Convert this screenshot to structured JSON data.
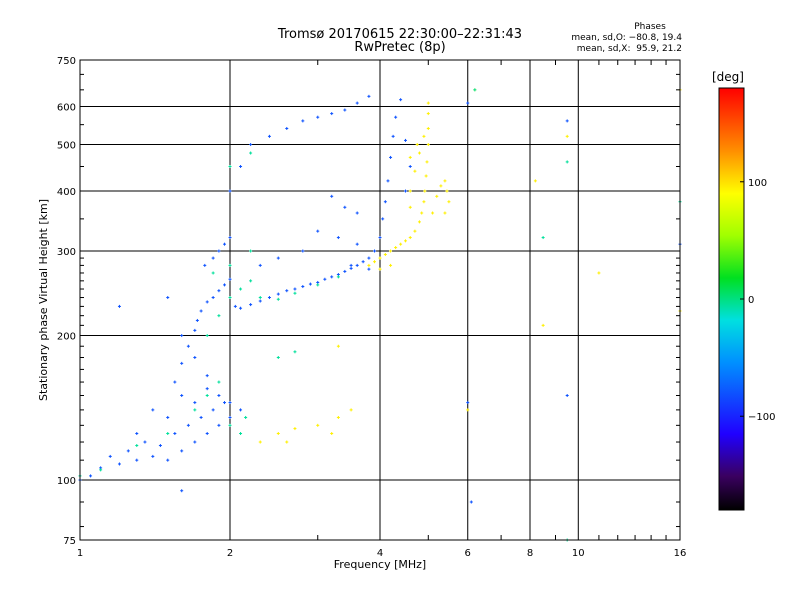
{
  "title_line1": "Tromsø 20170615 22:30:00–22:31:43",
  "title_line2": "RwPretec (8p)",
  "phase_info": {
    "title": "Phases",
    "line_o": "mean, sd,O: −80.8, 19.4",
    "line_x": "mean, sd,X:  95.9, 21.2"
  },
  "colorbar": {
    "unit": "[deg]",
    "ticks": [
      "100",
      "0",
      "−100"
    ],
    "tick_values": [
      100,
      0,
      -100
    ],
    "range": [
      -180,
      180
    ]
  },
  "chart_data": {
    "type": "scatter",
    "xlabel": "Frequency [MHz]",
    "ylabel": "Stationary phase Virtual Height [km]",
    "xscale": "log",
    "yscale": "log",
    "xlim": [
      1,
      16
    ],
    "ylim": [
      75,
      750
    ],
    "xticks": [
      1,
      2,
      4,
      6,
      8,
      10,
      16
    ],
    "xtick_labels": [
      "1",
      "2",
      "4",
      "6",
      "8",
      "10",
      "16"
    ],
    "yticks": [
      75,
      100,
      200,
      300,
      400,
      500,
      600,
      750
    ],
    "ytick_labels": [
      "75",
      "100",
      "200",
      "300",
      "400",
      "500",
      "600",
      "750"
    ],
    "grid": true,
    "series": [
      {
        "polarization": "O",
        "phase_deg": -80,
        "points": [
          [
            1.0,
            100
          ],
          [
            1.05,
            102
          ],
          [
            1.1,
            106
          ],
          [
            1.15,
            112
          ],
          [
            1.2,
            108
          ],
          [
            1.25,
            115
          ],
          [
            1.3,
            110
          ],
          [
            1.35,
            120
          ],
          [
            1.4,
            112
          ],
          [
            1.45,
            118
          ],
          [
            1.5,
            110
          ],
          [
            1.55,
            125
          ],
          [
            1.6,
            115
          ],
          [
            1.65,
            130
          ],
          [
            1.7,
            120
          ],
          [
            1.75,
            135
          ],
          [
            1.8,
            125
          ],
          [
            1.85,
            140
          ],
          [
            1.9,
            130
          ],
          [
            1.95,
            145
          ],
          [
            2.0,
            135
          ],
          [
            1.3,
            125
          ],
          [
            1.4,
            140
          ],
          [
            1.5,
            135
          ],
          [
            1.6,
            150
          ],
          [
            1.7,
            145
          ],
          [
            1.8,
            155
          ],
          [
            1.55,
            160
          ],
          [
            1.6,
            175
          ],
          [
            1.65,
            190
          ],
          [
            1.7,
            205
          ],
          [
            1.72,
            215
          ],
          [
            1.75,
            225
          ],
          [
            1.8,
            235
          ],
          [
            1.85,
            240
          ],
          [
            1.9,
            248
          ],
          [
            1.95,
            255
          ],
          [
            2.0,
            262
          ],
          [
            1.78,
            280
          ],
          [
            1.85,
            290
          ],
          [
            1.9,
            300
          ],
          [
            1.95,
            310
          ],
          [
            2.0,
            320
          ],
          [
            2.05,
            230
          ],
          [
            2.1,
            228
          ],
          [
            2.2,
            232
          ],
          [
            2.3,
            236
          ],
          [
            2.4,
            240
          ],
          [
            2.5,
            244
          ],
          [
            2.6,
            248
          ],
          [
            2.7,
            250
          ],
          [
            2.8,
            253
          ],
          [
            2.9,
            256
          ],
          [
            3.0,
            258
          ],
          [
            3.1,
            262
          ],
          [
            3.2,
            265
          ],
          [
            3.3,
            268
          ],
          [
            3.4,
            272
          ],
          [
            3.5,
            276
          ],
          [
            3.6,
            280
          ],
          [
            3.7,
            285
          ],
          [
            3.8,
            290
          ],
          [
            3.9,
            300
          ],
          [
            4.0,
            320
          ],
          [
            4.05,
            350
          ],
          [
            4.1,
            380
          ],
          [
            4.15,
            420
          ],
          [
            4.2,
            470
          ],
          [
            4.25,
            520
          ],
          [
            4.3,
            570
          ],
          [
            4.4,
            620
          ],
          [
            2.0,
            400
          ],
          [
            2.1,
            450
          ],
          [
            2.2,
            500
          ],
          [
            2.4,
            520
          ],
          [
            2.6,
            540
          ],
          [
            2.8,
            560
          ],
          [
            3.0,
            570
          ],
          [
            3.2,
            580
          ],
          [
            3.4,
            590
          ],
          [
            3.6,
            610
          ],
          [
            3.8,
            630
          ],
          [
            3.2,
            390
          ],
          [
            3.4,
            370
          ],
          [
            3.6,
            360
          ],
          [
            3.0,
            330
          ],
          [
            3.3,
            320
          ],
          [
            3.6,
            310
          ],
          [
            3.9,
            300
          ],
          [
            3.5,
            280
          ],
          [
            3.8,
            275
          ],
          [
            2.3,
            280
          ],
          [
            2.5,
            290
          ],
          [
            2.8,
            300
          ],
          [
            1.2,
            230
          ],
          [
            1.5,
            240
          ],
          [
            1.6,
            200
          ],
          [
            1.7,
            180
          ],
          [
            1.8,
            165
          ],
          [
            1.9,
            150
          ],
          [
            2.0,
            145
          ],
          [
            2.1,
            140
          ],
          [
            4.5,
            510
          ],
          [
            4.6,
            450
          ],
          [
            4.5,
            400
          ],
          [
            6.0,
            610
          ],
          [
            6.0,
            145
          ],
          [
            9.5,
            150
          ],
          [
            9.5,
            560
          ],
          [
            16,
            310
          ],
          [
            6.1,
            90
          ],
          [
            1.6,
            95
          ]
        ]
      },
      {
        "polarization": "X",
        "phase_deg": 95,
        "points": [
          [
            3.8,
            280
          ],
          [
            3.9,
            285
          ],
          [
            4.0,
            290
          ],
          [
            4.1,
            295
          ],
          [
            4.2,
            300
          ],
          [
            4.3,
            305
          ],
          [
            4.4,
            310
          ],
          [
            4.5,
            315
          ],
          [
            4.6,
            320
          ],
          [
            4.7,
            330
          ],
          [
            4.8,
            345
          ],
          [
            4.85,
            360
          ],
          [
            4.9,
            380
          ],
          [
            4.92,
            400
          ],
          [
            4.95,
            430
          ],
          [
            4.97,
            460
          ],
          [
            5.0,
            500
          ],
          [
            5.0,
            540
          ],
          [
            5.0,
            580
          ],
          [
            5.0,
            610
          ],
          [
            4.9,
            520
          ],
          [
            4.8,
            480
          ],
          [
            4.7,
            440
          ],
          [
            4.6,
            400
          ],
          [
            4.6,
            370
          ],
          [
            5.1,
            360
          ],
          [
            5.2,
            390
          ],
          [
            5.3,
            410
          ],
          [
            5.4,
            420
          ],
          [
            5.45,
            400
          ],
          [
            5.5,
            380
          ],
          [
            5.4,
            360
          ],
          [
            2.5,
            125
          ],
          [
            2.6,
            120
          ],
          [
            2.7,
            128
          ],
          [
            3.0,
            130
          ],
          [
            3.2,
            125
          ],
          [
            3.3,
            135
          ],
          [
            3.5,
            140
          ],
          [
            2.3,
            120
          ],
          [
            4.6,
            470
          ],
          [
            4.75,
            500
          ],
          [
            4.2,
            280
          ],
          [
            4.0,
            275
          ],
          [
            6.2,
            650
          ],
          [
            8.2,
            420
          ],
          [
            9.5,
            520
          ],
          [
            11,
            270
          ],
          [
            16,
            225
          ],
          [
            16,
            650
          ],
          [
            8.5,
            210
          ],
          [
            3.3,
            190
          ],
          [
            6.0,
            140
          ]
        ]
      },
      {
        "polarization": "mixed",
        "phase_deg": -5,
        "points": [
          [
            1.0,
            102
          ],
          [
            1.1,
            105
          ],
          [
            1.3,
            118
          ],
          [
            1.5,
            125
          ],
          [
            1.7,
            140
          ],
          [
            1.8,
            150
          ],
          [
            1.9,
            160
          ],
          [
            2.0,
            130
          ],
          [
            2.1,
            125
          ],
          [
            2.15,
            135
          ],
          [
            1.8,
            200
          ],
          [
            1.9,
            220
          ],
          [
            2.0,
            240
          ],
          [
            2.1,
            250
          ],
          [
            2.2,
            260
          ],
          [
            1.85,
            270
          ],
          [
            2.0,
            280
          ],
          [
            2.2,
            300
          ],
          [
            2.3,
            240
          ],
          [
            2.5,
            238
          ],
          [
            2.7,
            245
          ],
          [
            3.0,
            255
          ],
          [
            3.3,
            265
          ],
          [
            2.0,
            450
          ],
          [
            2.2,
            480
          ],
          [
            6.2,
            650
          ],
          [
            9.5,
            75
          ],
          [
            16,
            380
          ],
          [
            9.5,
            460
          ],
          [
            8.5,
            320
          ],
          [
            2.5,
            180
          ],
          [
            2.7,
            185
          ]
        ]
      }
    ]
  }
}
